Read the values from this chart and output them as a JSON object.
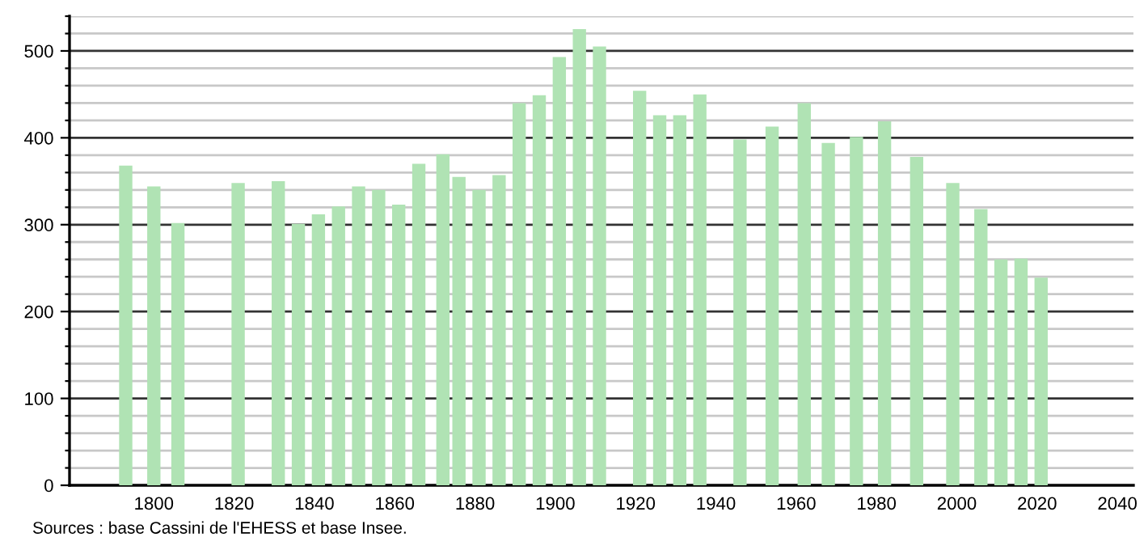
{
  "chart_data": {
    "type": "bar",
    "x": [
      1793,
      1800,
      1806,
      1821,
      1831,
      1836,
      1841,
      1846,
      1851,
      1856,
      1861,
      1866,
      1872,
      1876,
      1881,
      1886,
      1891,
      1896,
      1901,
      1906,
      1911,
      1921,
      1926,
      1931,
      1936,
      1946,
      1954,
      1962,
      1968,
      1975,
      1982,
      1990,
      1999,
      2006,
      2011,
      2016,
      2021
    ],
    "values": [
      368,
      344,
      302,
      348,
      350,
      301,
      312,
      321,
      344,
      340,
      323,
      370,
      381,
      355,
      340,
      357,
      440,
      449,
      493,
      525,
      505,
      454,
      426,
      426,
      450,
      398,
      413,
      440,
      394,
      401,
      419,
      378,
      348,
      318,
      260,
      261,
      239
    ],
    "color": "#b0e3b4",
    "xlim": [
      1779,
      2044
    ],
    "xticks": [
      1800,
      1820,
      1840,
      1860,
      1880,
      1900,
      1920,
      1940,
      1960,
      1980,
      2000,
      2020,
      2040
    ],
    "ylim": [
      0,
      540
    ],
    "yticks": [
      0,
      {
        "value": 20,
        "label": null
      },
      {
        "value": 40,
        "label": null
      },
      {
        "value": 60,
        "label": null
      },
      {
        "value": 80,
        "label": null
      },
      100,
      {
        "value": 120,
        "label": null
      },
      {
        "value": 140,
        "label": null
      },
      {
        "value": 160,
        "label": null
      },
      {
        "value": 180,
        "label": null
      },
      200,
      {
        "value": 220,
        "label": null
      },
      {
        "value": 240,
        "label": null
      },
      {
        "value": 260,
        "label": null
      },
      {
        "value": 280,
        "label": null
      },
      300,
      {
        "value": 320,
        "label": null
      },
      {
        "value": 340,
        "label": null
      },
      {
        "value": 360,
        "label": null
      },
      {
        "value": 380,
        "label": null
      },
      400,
      {
        "value": 420,
        "label": null
      },
      {
        "value": 440,
        "label": null
      },
      {
        "value": 460,
        "label": null
      },
      {
        "value": 480,
        "label": null
      },
      500,
      {
        "value": 520,
        "label": null
      },
      {
        "value": 540,
        "label": null
      }
    ],
    "grid": "y",
    "annotations": [
      "Sources : base Cassini de l'EHESS et base Insee."
    ]
  }
}
